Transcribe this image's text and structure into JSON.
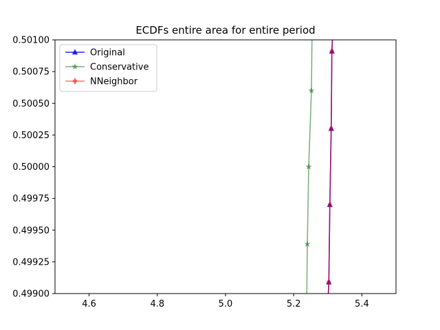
{
  "chart_data": {
    "type": "line",
    "title": "ECDFs entire area for entire period",
    "xlabel": "",
    "ylabel": "",
    "xlim": [
      4.5,
      5.5
    ],
    "ylim": [
      0.499,
      0.501
    ],
    "x_ticks": [
      4.6,
      4.8,
      5.0,
      5.2,
      5.4
    ],
    "x_tick_labels": [
      "4.6",
      "4.8",
      "5.0",
      "5.2",
      "5.4"
    ],
    "y_ticks": [
      0.499,
      0.49925,
      0.4995,
      0.49975,
      0.5,
      0.50025,
      0.5005,
      0.50075,
      0.501
    ],
    "y_tick_labels": [
      "0.49900",
      "0.49925",
      "0.49950",
      "0.49975",
      "0.50000",
      "0.50025",
      "0.50050",
      "0.50075",
      "0.50100"
    ],
    "grid": false,
    "legend_position": "top-left",
    "series": [
      {
        "name": "Original",
        "color": "#0000ff",
        "marker": "triangle",
        "opacity": 0.85,
        "x": [
          5.3,
          5.303,
          5.306,
          5.31,
          5.312,
          5.315
        ],
        "y": [
          0.4989,
          0.49909,
          0.4997,
          0.5003,
          0.50091,
          0.5011
        ]
      },
      {
        "name": "Conservative",
        "color": "#006400",
        "marker": "star",
        "opacity": 0.5,
        "x": [
          5.238,
          5.24,
          5.244,
          5.252,
          5.254
        ],
        "y": [
          0.4989,
          0.49939,
          0.5,
          0.5006,
          0.5011
        ]
      },
      {
        "name": "NNeighbor",
        "color": "#ff0000",
        "marker": "diamond",
        "opacity": 0.55,
        "x": [
          5.3,
          5.303,
          5.306,
          5.31,
          5.312,
          5.315
        ],
        "y": [
          0.4989,
          0.49909,
          0.4997,
          0.5003,
          0.50091,
          0.5011
        ]
      }
    ]
  }
}
